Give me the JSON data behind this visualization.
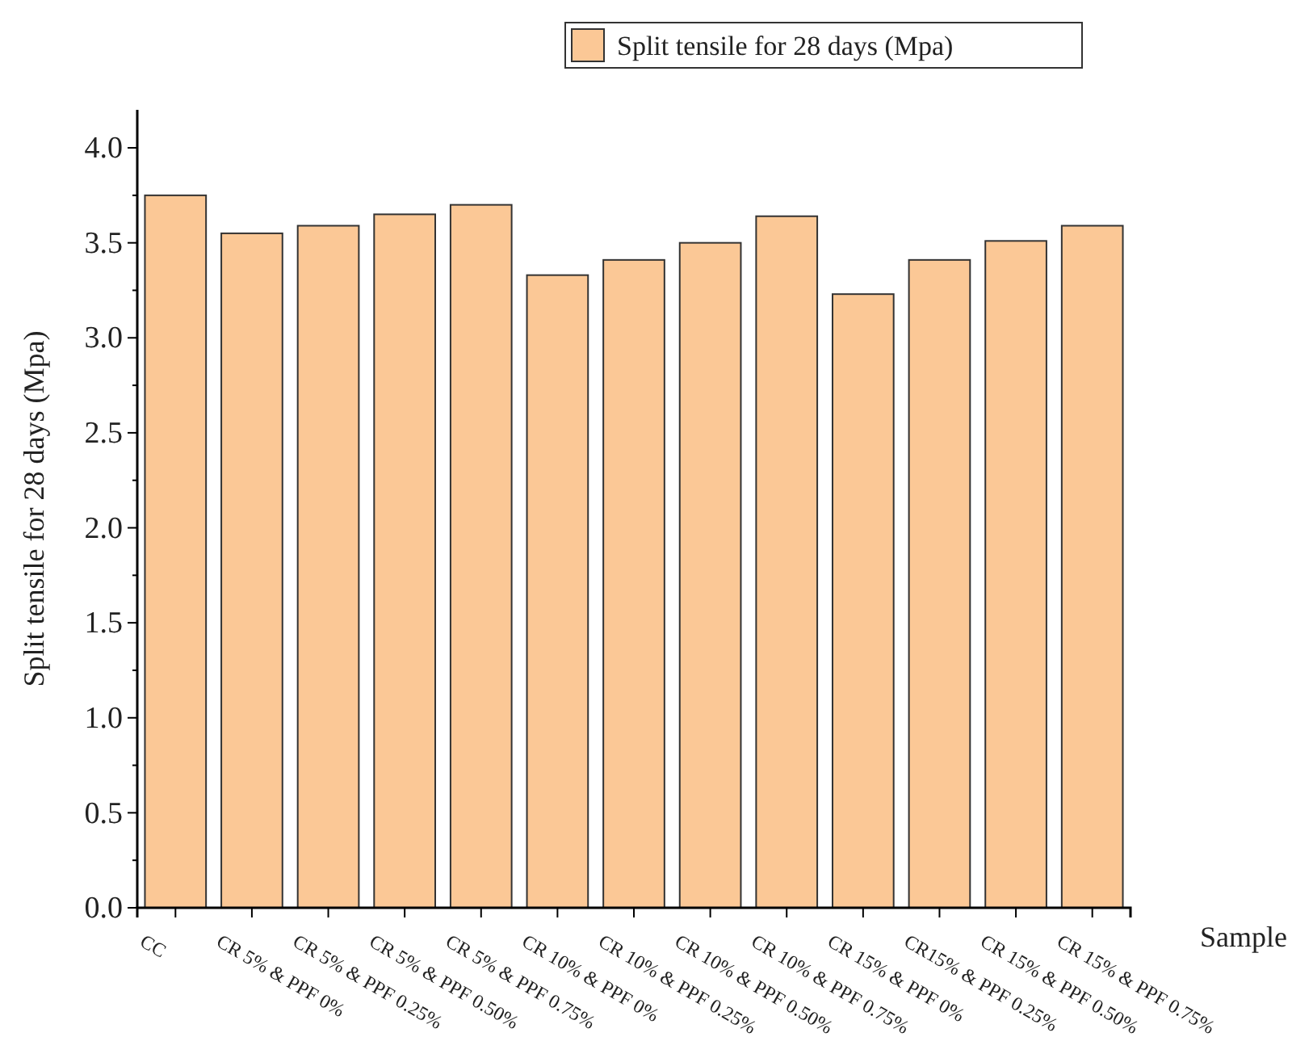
{
  "chart_data": {
    "type": "bar",
    "xlabel": "Sample",
    "ylabel": "Split tensile for 28 days (Mpa)",
    "categories": [
      "CC",
      "CR 5% & PPF 0%",
      "CR 5% & PPF 0.25%",
      "CR 5% & PPF 0.50%",
      "CR 5% & PPF 0.75%",
      "CR 10% & PPF 0%",
      "CR 10% & PPF 0.25%",
      "CR 10% & PPF 0.50%",
      "CR 10% & PPF 0.75%",
      "CR 15% & PPF 0%",
      "CR15% & PPF 0.25%",
      "CR 15% & PPF 0.50%",
      "CR 15% & PPF 0.75%"
    ],
    "series": [
      {
        "name": "Split tensile for 28 days (Mpa)",
        "color": "#fbc896",
        "values": [
          3.75,
          3.55,
          3.59,
          3.65,
          3.7,
          3.33,
          3.41,
          3.5,
          3.64,
          3.23,
          3.41,
          3.51,
          3.59
        ]
      }
    ],
    "ylim": [
      0,
      4.2
    ],
    "yticks": [
      {
        "value": 0,
        "label": "0.0"
      },
      0.5,
      {
        "value": 1,
        "label": "1.0"
      },
      1.5,
      {
        "value": 2,
        "label": "2.0"
      },
      2.5,
      {
        "value": 3,
        "label": "3.0"
      },
      3.5,
      {
        "value": 4,
        "label": "4.0"
      }
    ],
    "legend": "top right",
    "grid": false
  }
}
